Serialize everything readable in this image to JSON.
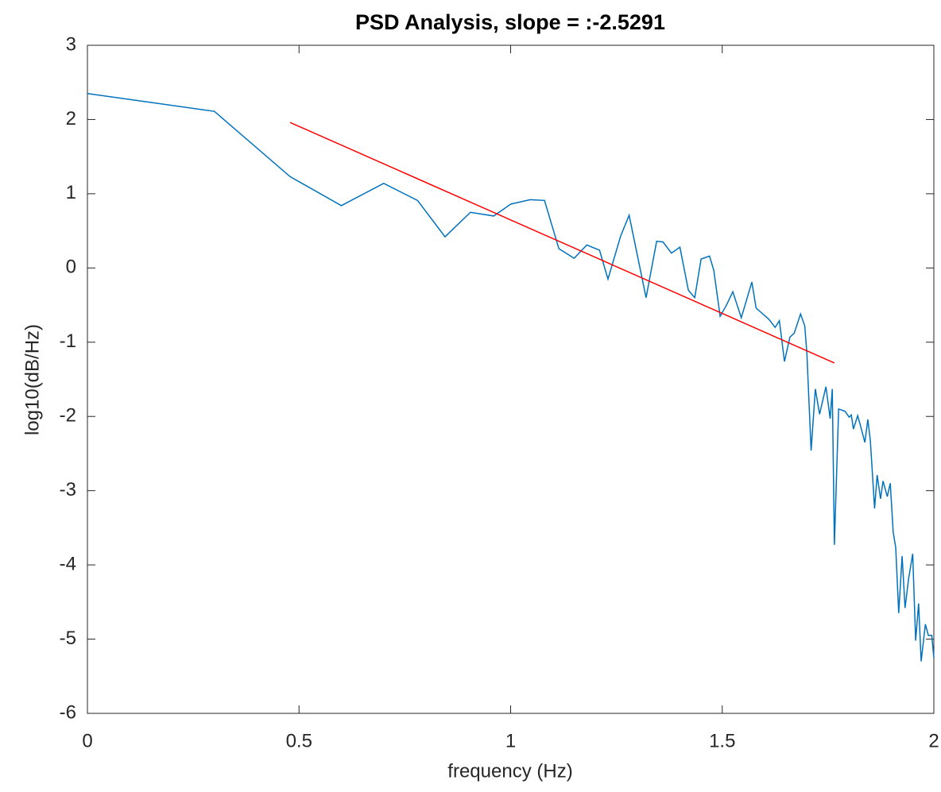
{
  "chart_data": {
    "type": "line",
    "title": "PSD Analysis, slope = :-2.5291",
    "xlabel": "frequency (Hz)",
    "ylabel": "log10(dB/Hz)",
    "xlim": [
      0,
      2
    ],
    "xticks": [
      0,
      0.5,
      1,
      1.5,
      2
    ],
    "ylim": [
      -6,
      3
    ],
    "yticks": [
      -6,
      -5,
      -4,
      -3,
      -2,
      -1,
      0,
      1,
      2,
      3
    ],
    "series": [
      {
        "color": "#0072bd",
        "x": [
          0,
          0.3,
          0.479,
          0.6,
          0.7,
          0.78,
          0.845,
          0.905,
          0.96,
          1.0,
          1.046,
          1.08,
          1.114,
          1.15,
          1.18,
          1.21,
          1.23,
          1.26,
          1.28,
          1.32,
          1.345,
          1.36,
          1.38,
          1.4,
          1.42,
          1.435,
          1.45,
          1.47,
          1.48,
          1.495,
          1.51,
          1.525,
          1.545,
          1.57,
          1.58,
          1.6,
          1.61,
          1.625,
          1.635,
          1.647,
          1.66,
          1.67,
          1.685,
          1.695,
          1.7,
          1.71,
          1.72,
          1.73,
          1.745,
          1.755,
          1.76,
          1.765,
          1.775,
          1.79,
          1.8,
          1.805,
          1.81,
          1.82,
          1.825,
          1.837,
          1.844,
          1.85,
          1.86,
          1.866,
          1.874,
          1.88,
          1.89,
          1.897,
          1.904,
          1.91,
          1.917,
          1.925,
          1.932,
          1.94,
          1.95,
          1.957,
          1.964,
          1.97,
          1.98,
          1.987,
          1.995,
          2.0
        ],
        "values": [
          2.35,
          2.11,
          1.23,
          0.84,
          1.14,
          0.91,
          0.42,
          0.75,
          0.7,
          0.86,
          0.92,
          0.91,
          0.26,
          0.13,
          0.31,
          0.24,
          -0.15,
          0.43,
          0.71,
          -0.4,
          0.36,
          0.35,
          0.2,
          0.28,
          -0.3,
          -0.4,
          0.12,
          0.16,
          -0.03,
          -0.65,
          -0.5,
          -0.32,
          -0.67,
          -0.19,
          -0.54,
          -0.64,
          -0.69,
          -0.8,
          -0.71,
          -1.26,
          -0.93,
          -0.88,
          -0.62,
          -0.78,
          -1.15,
          -2.46,
          -1.63,
          -1.97,
          -1.6,
          -2.03,
          -1.63,
          -3.73,
          -1.9,
          -1.93,
          -2.01,
          -1.98,
          -2.17,
          -1.99,
          -2.09,
          -2.35,
          -2.04,
          -2.33,
          -3.24,
          -2.79,
          -3.11,
          -2.87,
          -3.08,
          -2.9,
          -3.56,
          -3.77,
          -4.65,
          -3.88,
          -4.58,
          -4.2,
          -3.85,
          -5.02,
          -4.52,
          -5.3,
          -4.8,
          -4.95,
          -4.95,
          -5.25
        ]
      },
      {
        "color": "#ff0000",
        "x": [
          0.479,
          1.765
        ],
        "values": [
          1.96,
          -1.28
        ]
      }
    ]
  }
}
